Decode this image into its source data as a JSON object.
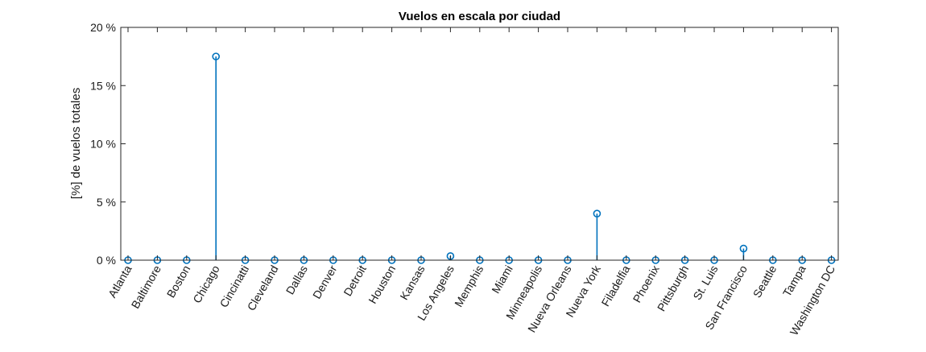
{
  "chart_data": {
    "type": "stem",
    "title": "Vuelos en escala por ciudad",
    "xlabel": "",
    "ylabel": "[%] de vuelos totales",
    "ylim": [
      0,
      20
    ],
    "yticks": [
      0,
      5,
      10,
      15,
      20
    ],
    "ytick_labels": [
      "0 %",
      "5 %",
      "10 %",
      "15 %",
      "20 %"
    ],
    "categories": [
      "Atlanta",
      "Baltimore",
      "Boston",
      "Chicago",
      "Cincinatti",
      "Cleveland",
      "Dallas",
      "Denver",
      "Detroit",
      "Houston",
      "Kansas",
      "Los Angeles",
      "Memphis",
      "Miami",
      "Minneapolis",
      "Nueva Orleans",
      "Nueva York",
      "Filadelfia",
      "Phoenix",
      "Pittsburgh",
      "St. Luis",
      "San Francisco",
      "Seattle",
      "Tampa",
      "Washington DC"
    ],
    "values": [
      0,
      0,
      0,
      17.5,
      0,
      0,
      0,
      0,
      0,
      0,
      0,
      0.35,
      0,
      0,
      0,
      0,
      4.0,
      0,
      0,
      0,
      0,
      1.0,
      0,
      0,
      0
    ],
    "color": "#0072bd",
    "grid": false,
    "legend": "none"
  }
}
